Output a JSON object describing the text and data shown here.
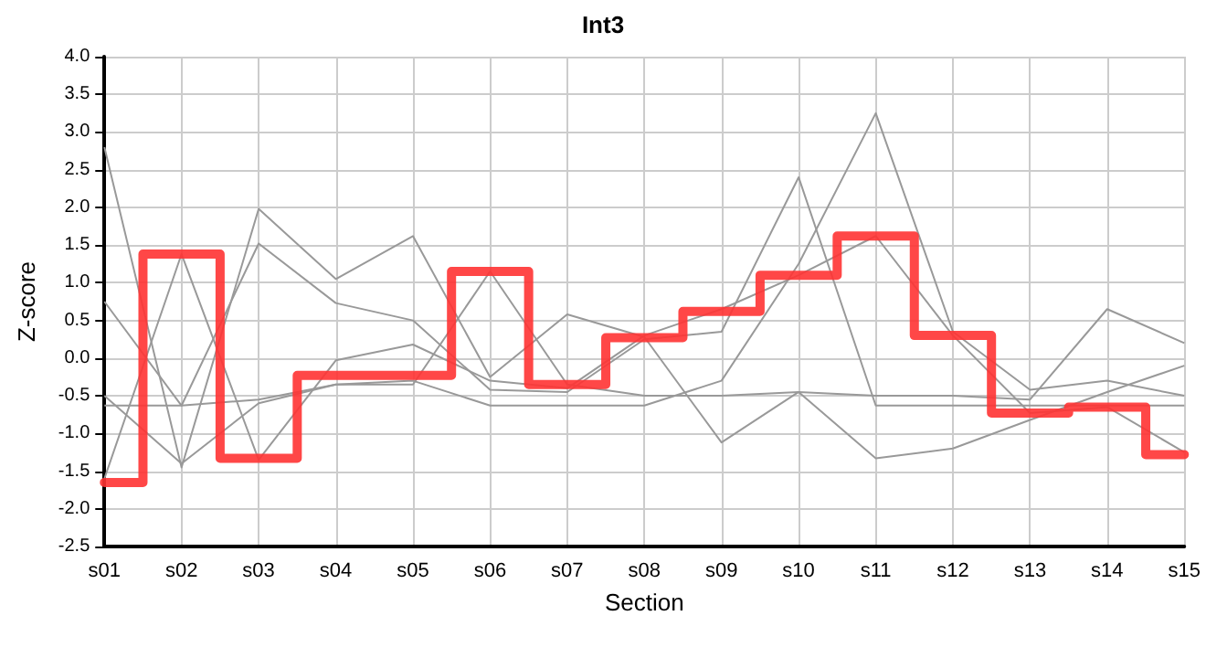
{
  "chart_data": {
    "type": "line",
    "title": "Int3",
    "xlabel": "Section",
    "ylabel": "Z-score",
    "categories": [
      "s01",
      "s02",
      "s03",
      "s04",
      "s05",
      "s06",
      "s07",
      "s08",
      "s09",
      "s10",
      "s11",
      "s12",
      "s13",
      "s14",
      "s15"
    ],
    "ylim": [
      -2.5,
      4.0
    ],
    "yticks": [
      {
        "value": -2.5,
        "label": "-2.5"
      },
      {
        "value": -2,
        "label": "-2.0"
      },
      {
        "value": -1.5,
        "label": "-1.5"
      },
      {
        "value": -1,
        "label": "-1.0"
      },
      {
        "value": -0.5,
        "label": "-0.5"
      },
      {
        "value": 0,
        "label": "0.0"
      },
      {
        "value": 0.5,
        "label": "0.5"
      },
      {
        "value": 1,
        "label": "1.0"
      },
      {
        "value": 1.5,
        "label": "1.5"
      },
      {
        "value": 2,
        "label": "2.0"
      },
      {
        "value": 2.5,
        "label": "2.5"
      },
      {
        "value": 3,
        "label": "3.0"
      },
      {
        "value": 3.5,
        "label": "3.5"
      },
      {
        "value": 4,
        "label": "4.0"
      }
    ],
    "grid": true,
    "marker": "none",
    "line_style": "solid",
    "series": [
      {
        "color": "#999999",
        "values": [
          2.8,
          -1.45,
          1.98,
          1.05,
          1.62,
          -0.25,
          0.58,
          0.28,
          -1.12,
          -0.45,
          -1.33,
          -1.2,
          -0.82,
          -0.45,
          -0.1
        ]
      },
      {
        "color": "#999999",
        "values": [
          0.75,
          -0.63,
          1.52,
          0.73,
          0.5,
          -0.42,
          -0.45,
          0.25,
          0.35,
          2.4,
          -0.63,
          -0.63,
          -0.63,
          -0.63,
          -0.63
        ]
      },
      {
        "color": "#999999",
        "values": [
          -1.6,
          1.38,
          -1.35,
          -0.03,
          0.18,
          -0.3,
          -0.4,
          0.3,
          0.65,
          1.1,
          1.62,
          0.3,
          -0.73,
          -0.65,
          -1.25
        ]
      },
      {
        "color": "#999999",
        "values": [
          -0.5,
          -1.4,
          -0.6,
          -0.35,
          -0.35,
          1.15,
          -0.35,
          -0.5,
          -0.5,
          -0.45,
          -0.5,
          -0.5,
          -0.55,
          0.65,
          0.2
        ]
      },
      {
        "color": "#999999",
        "values": [
          -0.63,
          -0.63,
          -0.55,
          -0.35,
          -0.3,
          -0.63,
          -0.63,
          -0.63,
          -0.3,
          1.25,
          3.25,
          0.35,
          -0.42,
          -0.3,
          -0.5
        ]
      },
      {
        "type": "step",
        "color": "#ff3333",
        "values": [
          -1.65,
          1.38,
          -1.33,
          -0.23,
          -0.23,
          1.15,
          -0.35,
          0.27,
          0.62,
          1.1,
          1.62,
          0.3,
          -0.73,
          -0.65,
          -1.28
        ]
      }
    ]
  }
}
